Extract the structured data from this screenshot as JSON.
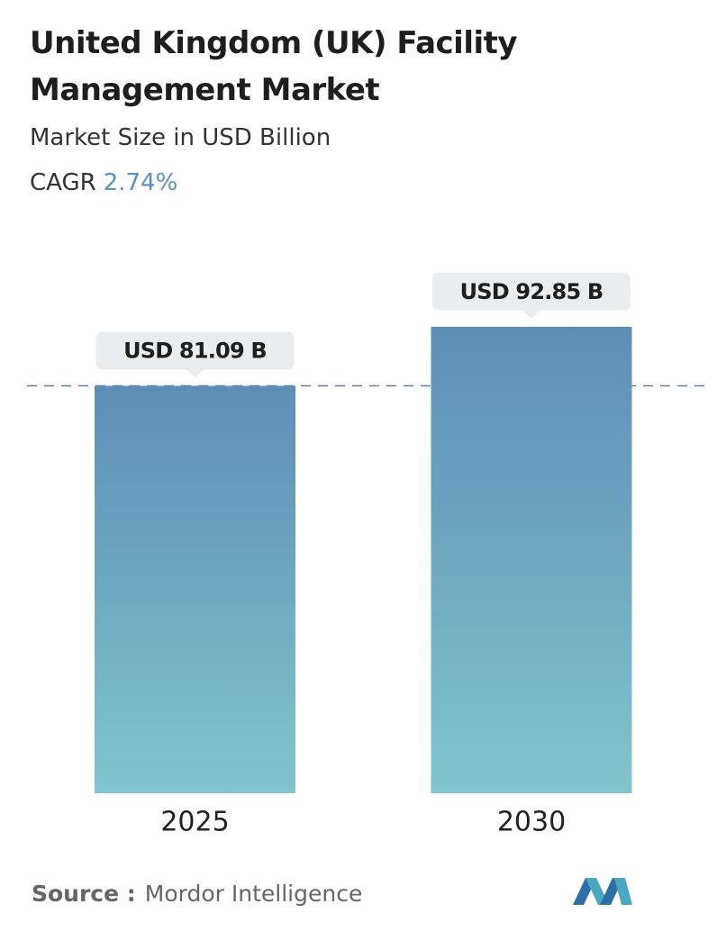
{
  "chart_data": {
    "type": "bar",
    "title": "United Kingdom (UK) Facility Management Market",
    "subtitle": "Market Size in USD Billion",
    "cagr_label": "CAGR",
    "cagr_value": "2.74%",
    "categories": [
      "2025",
      "2030"
    ],
    "values": [
      81.09,
      92.85
    ],
    "value_labels": [
      "USD 81.09 B",
      "USD 92.85 B"
    ],
    "colors": [
      "#5e8eb7",
      "#80c4cc"
    ],
    "source_label": "Source :",
    "source": "Mordor Intelligence"
  }
}
